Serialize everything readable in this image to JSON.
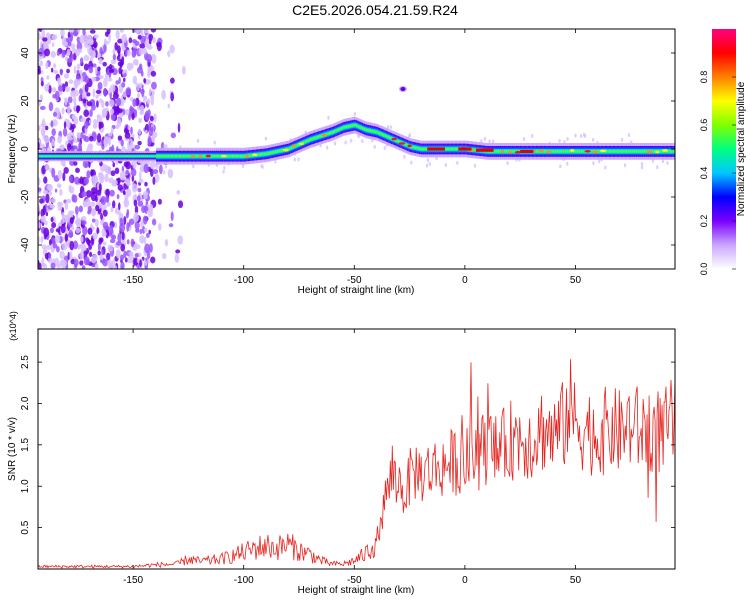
{
  "title": "C2E5.2026.054.21.59.R24",
  "chart_data": [
    {
      "type": "heatmap",
      "xlabel": "Height of straight line (km)",
      "ylabel": "Frequency (Hz)",
      "xlim": [
        -193,
        95
      ],
      "ylim": [
        -50,
        50
      ],
      "x_ticks": [
        -150,
        -100,
        -50,
        0,
        50
      ],
      "x_tick_labels": [
        "-150",
        "-100",
        "-50",
        "0",
        "50"
      ],
      "y_ticks": [
        -40,
        -20,
        0,
        20,
        40
      ],
      "y_tick_labels": [
        "-40",
        "-20",
        "0",
        "20",
        "40"
      ],
      "colorbar": {
        "label": "Normalized spectral amplitude",
        "range": [
          0,
          1
        ],
        "ticks": [
          0.0,
          0.2,
          0.4,
          0.6,
          0.8
        ],
        "tick_labels": [
          "0.0",
          "0.2",
          "0.4",
          "0.6",
          "0.8"
        ],
        "colormap": [
          "#ffffff",
          "#c9a6ff",
          "#7a00ff",
          "#0000ff",
          "#00c8ff",
          "#00ff80",
          "#80ff00",
          "#ffff00",
          "#ff8000",
          "#ff0000",
          "#ff0080"
        ]
      },
      "ridge": {
        "x": [
          -193,
          -150,
          -140,
          -120,
          -100,
          -90,
          -80,
          -70,
          -60,
          -55,
          -50,
          -45,
          -40,
          -35,
          -30,
          -25,
          -20,
          -10,
          0,
          10,
          30,
          60,
          95
        ],
        "freq": [
          -3,
          -3,
          -3,
          -3,
          -3,
          -2,
          0,
          4,
          7,
          9,
          10,
          8,
          7,
          5,
          3,
          1,
          0,
          0,
          0,
          -1,
          -1,
          -1,
          -1
        ]
      },
      "noise_region_x": [
        -193,
        -140
      ]
    },
    {
      "type": "line",
      "xlabel": "Height of straight line (km)",
      "ylabel": "SNR (10 * v/v)",
      "y_multiplier": "(x10^4)",
      "xlim": [
        -193,
        95
      ],
      "ylim": [
        0,
        2.9
      ],
      "x_ticks": [
        -150,
        -100,
        -50,
        0,
        50
      ],
      "x_tick_labels": [
        "-150",
        "-100",
        "-50",
        "0",
        "50"
      ],
      "y_ticks": [
        0.5,
        1.0,
        1.5,
        2.0,
        2.5
      ],
      "y_tick_labels": [
        "0.5",
        "1.0",
        "1.5",
        "2.0",
        "2.5"
      ],
      "color": "#e8241f",
      "series": [
        {
          "x": [
            -193,
            -170,
            -150,
            -140,
            -130,
            -125,
            -120,
            -110,
            -100,
            -95,
            -90,
            -85,
            -80,
            -75,
            -70,
            -65,
            -60,
            -55,
            -50,
            -45,
            -40,
            -37,
            -35,
            -33,
            -30,
            -27,
            -25,
            -22,
            -20,
            -15,
            -10,
            -5,
            0,
            5,
            10,
            15,
            20,
            25,
            30,
            35,
            40,
            45,
            47,
            50,
            55,
            60,
            65,
            70,
            75,
            80,
            85,
            90,
            95
          ],
          "y": [
            0.03,
            0.03,
            0.03,
            0.05,
            0.06,
            0.12,
            0.09,
            0.12,
            0.2,
            0.25,
            0.28,
            0.25,
            0.3,
            0.22,
            0.18,
            0.1,
            0.06,
            0.06,
            0.1,
            0.18,
            0.35,
            0.7,
            1.0,
            1.1,
            1.05,
            0.9,
            1.1,
            1.2,
            1.15,
            1.2,
            1.25,
            1.3,
            1.3,
            1.35,
            1.5,
            1.4,
            1.55,
            1.6,
            1.55,
            1.7,
            1.6,
            1.75,
            2.0,
            1.75,
            1.7,
            1.6,
            1.7,
            1.65,
            1.75,
            1.65,
            1.7,
            1.65,
            1.8
          ]
        }
      ]
    }
  ]
}
